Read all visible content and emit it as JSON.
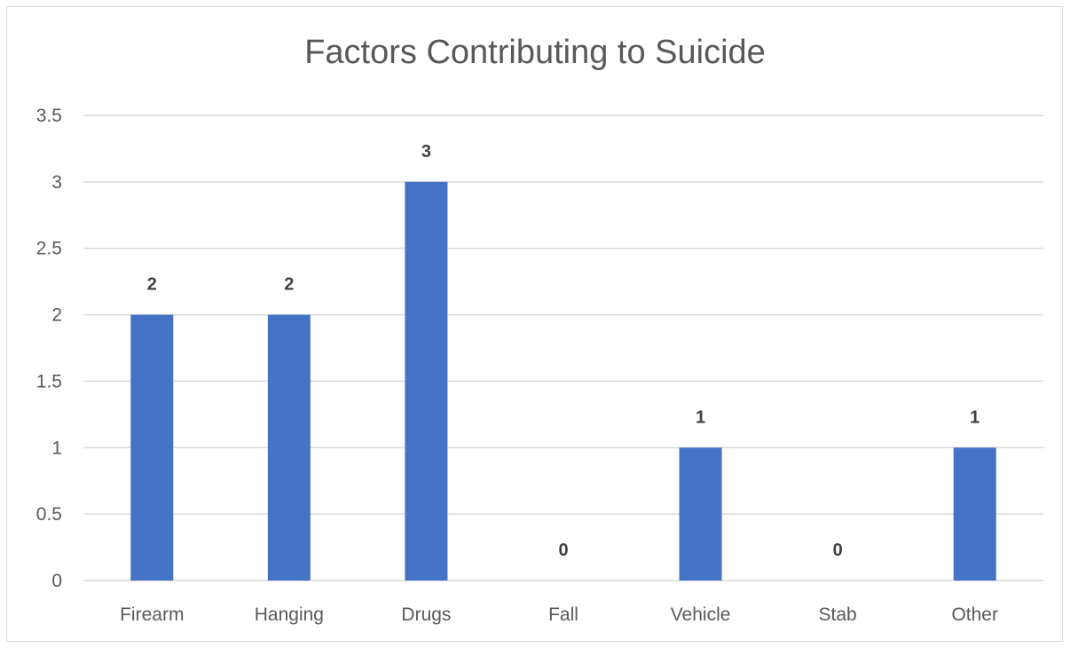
{
  "chart_data": {
    "type": "bar",
    "title": "Factors Contributing to Suicide",
    "xlabel": "",
    "ylabel": "",
    "categories": [
      "Firearm",
      "Hanging",
      "Drugs",
      "Fall",
      "Vehicle",
      "Stab",
      "Other"
    ],
    "values": [
      2,
      2,
      3,
      0,
      1,
      0,
      1
    ],
    "ylim": [
      0,
      3.5
    ],
    "yticks": [
      "0",
      "0.5",
      "1",
      "1.5",
      "2",
      "2.5",
      "3",
      "3.5"
    ],
    "grid": true,
    "legend": "none",
    "data_labels": true,
    "bar_color": "#4472c4",
    "grid_color": "#d9d9d9"
  }
}
